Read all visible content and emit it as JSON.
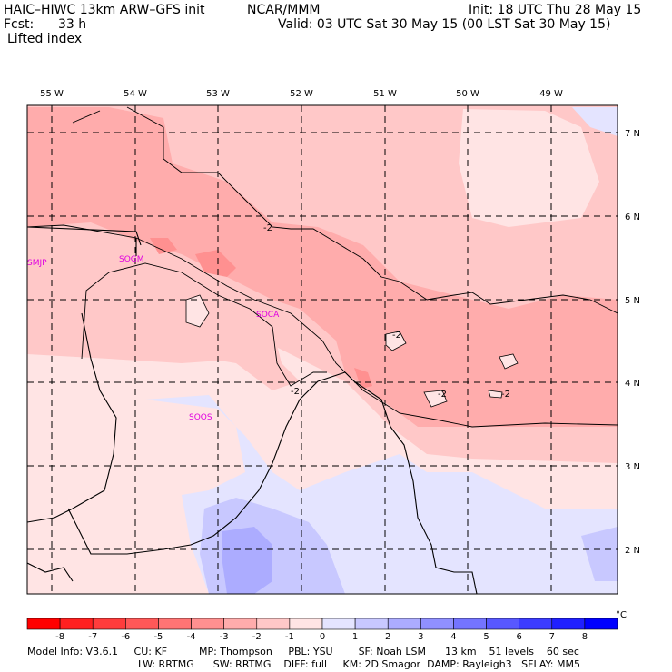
{
  "header": {
    "model_line": "HAIC–HIWC 13km ARW–GFS init",
    "center": "NCAR/MMM",
    "init": "Init: 18 UTC Thu 28 May 15",
    "fcst_label": "Fcst:",
    "fcst_value": "33 h",
    "valid": "Valid: 03 UTC Sat 30 May 15 (00 LST Sat 30 May 15)",
    "field": "Lifted index"
  },
  "map": {
    "lon_labels": [
      "55 W",
      "54 W",
      "53 W",
      "52 W",
      "51 W",
      "50 W",
      "49 W"
    ],
    "lat_labels": [
      "7 N",
      "6 N",
      "5 N",
      "4 N",
      "3 N",
      "2 N"
    ],
    "contour_labels": [
      "-2",
      "-2",
      "-2",
      "-2",
      "-2"
    ],
    "stations": [
      "SMJP",
      "SOGM",
      "SOCA",
      "SOOS"
    ]
  },
  "colorbar": {
    "ticks": [
      "-8",
      "-7",
      "-6",
      "-5",
      "-4",
      "-3",
      "-2",
      "-1",
      "0",
      "1",
      "2",
      "3",
      "4",
      "5",
      "6",
      "7",
      "8"
    ],
    "unit": "°C",
    "colors": [
      "#ff0000",
      "#ff2020",
      "#ff3c3c",
      "#ff5858",
      "#ff7474",
      "#ff9090",
      "#ffacac",
      "#ffc8c8",
      "#ffe4e4",
      "#e4e4ff",
      "#c8c8ff",
      "#acacff",
      "#9090ff",
      "#7474ff",
      "#5858ff",
      "#3c3cff",
      "#2020ff",
      "#0000ff"
    ]
  },
  "footer": {
    "line1": "Model Info: V3.6.1     CU: KF          MP: Thompson     PBL: YSU        SF: Noah LSM      13 km    51 levels    60 sec",
    "line2": "LW: RRTMG      SW: RRTMG    DIFF: full     KM: 2D Smagor  DAMP: Rayleigh3   SFLAY: MM5"
  }
}
